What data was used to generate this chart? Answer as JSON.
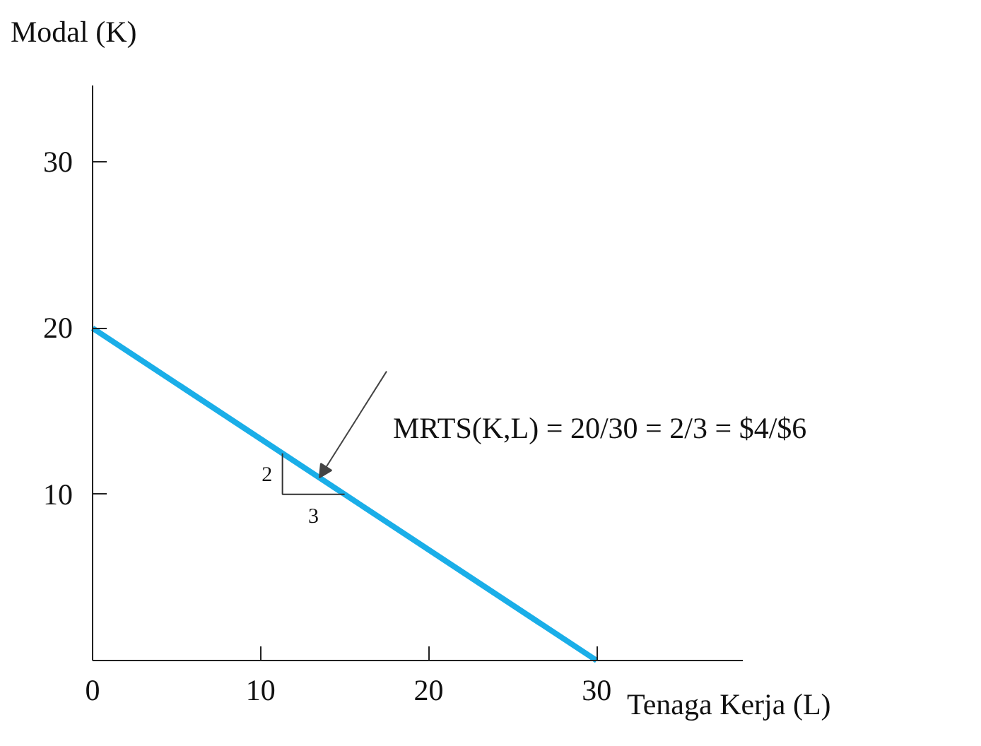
{
  "chart_data": {
    "type": "line",
    "xlabel": "Tenaga Kerja (L)",
    "ylabel": "Modal (K)",
    "x": [
      0,
      30
    ],
    "series": [
      {
        "color": "#1aaee8",
        "values": [
          20,
          0
        ]
      }
    ],
    "xlim": [
      0,
      38.7
    ],
    "ylim": [
      0,
      34.6
    ],
    "xticks": [
      0,
      10,
      20,
      30
    ],
    "yticks": [
      10,
      20,
      30
    ],
    "grid": false,
    "marker": "none",
    "line_style": "solid",
    "annotations": [
      {
        "text": "MRTS(K,L) = 20/30 = 2/3 = $4/$6",
        "x": 13.5,
        "y": 11
      },
      {
        "text": "2",
        "x": 11.3,
        "y": 12.47
      },
      {
        "text": "3",
        "x": 15,
        "y": 10
      }
    ]
  }
}
